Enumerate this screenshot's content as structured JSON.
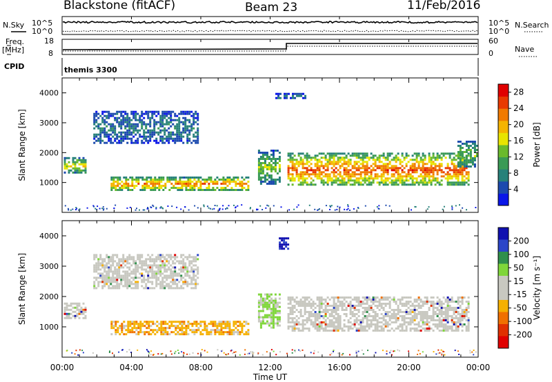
{
  "header": {
    "station": "Blackstone (fitACF)",
    "beam": "Beam 23",
    "date": "11/Feb/2016"
  },
  "panels": {
    "nsky": {
      "label": "N.Sky",
      "ticks": [
        "10^5",
        "10^0"
      ],
      "right_label": "N.Search"
    },
    "freq": {
      "label": "Freq.",
      "unit": "[MHz]",
      "left_ticks": [
        "18",
        "8"
      ],
      "right_ticks": [
        "60",
        "0"
      ],
      "right_label": "Nave"
    },
    "cpid": {
      "label": "CPID",
      "text": "themis 3300"
    }
  },
  "chart_data": [
    {
      "type": "heatmap",
      "name": "power",
      "ylabel": "Slant Range [km]",
      "xlabel": "Time UT",
      "xlim": [
        0,
        24
      ],
      "ylim": [
        0,
        4500
      ],
      "y_ticks": [
        "1000",
        "2000",
        "3000",
        "4000"
      ],
      "x_ticks": [
        "00:00",
        "04:00",
        "08:00",
        "12:00",
        "16:00",
        "20:00",
        "00:00"
      ],
      "colorbar": {
        "label": "Power [dB]",
        "ticks": [
          "4",
          "8",
          "12",
          "16",
          "20",
          "24",
          "28"
        ],
        "range": [
          0,
          30
        ]
      },
      "regions": [
        {
          "t": [
            0.1,
            1.4
          ],
          "r": [
            1350,
            1850
          ],
          "level": 16
        },
        {
          "t": [
            1.8,
            7.8
          ],
          "r": [
            2300,
            3400
          ],
          "level": 6
        },
        {
          "t": [
            2.8,
            10.8
          ],
          "r": [
            750,
            1200
          ],
          "level": 22
        },
        {
          "t": [
            11.3,
            12.6
          ],
          "r": [
            950,
            2100
          ],
          "level": 13
        },
        {
          "t": [
            12.3,
            14.0
          ],
          "r": [
            3850,
            4000
          ],
          "level": 6
        },
        {
          "t": [
            13.0,
            23.5
          ],
          "r": [
            900,
            2000
          ],
          "level": 24
        },
        {
          "t": [
            22.8,
            23.9
          ],
          "r": [
            1500,
            2400
          ],
          "level": 12
        }
      ]
    },
    {
      "type": "heatmap",
      "name": "velocity",
      "ylabel": "Slant Range [km]",
      "xlabel": "Time UT",
      "xlim": [
        0,
        24
      ],
      "ylim": [
        0,
        4500
      ],
      "y_ticks": [
        "1000",
        "2000",
        "3000",
        "4000"
      ],
      "x_ticks": [
        "00:00",
        "04:00",
        "08:00",
        "12:00",
        "16:00",
        "20:00",
        "00:00"
      ],
      "colorbar": {
        "label": "Velocity [m s⁻¹]",
        "ticks": [
          "200",
          "100",
          "50",
          "15",
          "-15",
          "-50",
          "-100",
          "-200"
        ]
      },
      "regions": [
        {
          "t": [
            0.1,
            1.4
          ],
          "r": [
            1300,
            1800
          ],
          "class": "near-zero"
        },
        {
          "t": [
            1.8,
            7.8
          ],
          "r": [
            2300,
            3400
          ],
          "class": "near-zero"
        },
        {
          "t": [
            2.8,
            10.8
          ],
          "r": [
            750,
            1200
          ],
          "class": "negative"
        },
        {
          "t": [
            11.3,
            12.6
          ],
          "r": [
            1000,
            2100
          ],
          "class": "positive"
        },
        {
          "t": [
            12.5,
            13.0
          ],
          "r": [
            3600,
            3950
          ],
          "class": "strong-positive"
        },
        {
          "t": [
            13.0,
            23.5
          ],
          "r": [
            900,
            2000
          ],
          "class": "near-zero"
        }
      ]
    }
  ]
}
